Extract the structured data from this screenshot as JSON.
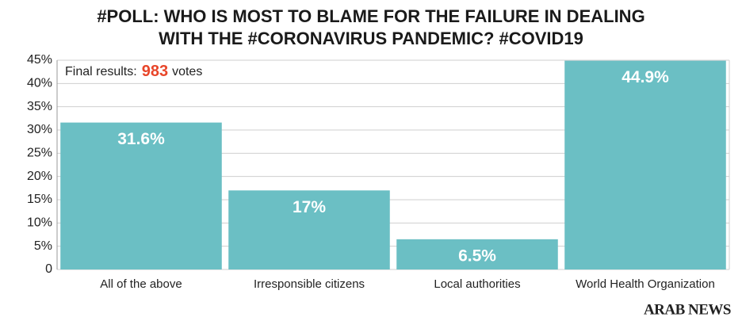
{
  "chart_data": {
    "type": "bar",
    "title": [
      "#POLL: WHO IS MOST TO BLAME FOR THE FAILURE IN DEALING",
      "WITH THE #CORONAVIRUS PANDEMIC? #COVID19"
    ],
    "annotation": {
      "prefix": "Final results:",
      "value": 983,
      "suffix": "votes",
      "value_color": "#e8462a"
    },
    "categories": [
      "All of the above",
      "Irresponsible citizens",
      "Local authorities",
      "World Health Organization"
    ],
    "values": [
      31.6,
      17,
      6.5,
      44.9
    ],
    "value_labels": [
      "31.6%",
      "17%",
      "6.5%",
      "44.9%"
    ],
    "color": "#6bbfc4",
    "ylim": [
      0,
      45
    ],
    "yticks": [
      0,
      {
        "value": 5,
        "label": "5%"
      },
      {
        "value": 10,
        "label": "10%"
      },
      {
        "value": 15,
        "label": "15%"
      },
      {
        "value": 20,
        "label": "20%"
      },
      {
        "value": 25,
        "label": "25%"
      },
      {
        "value": 30,
        "label": "30%"
      },
      {
        "value": 35,
        "label": "35%"
      },
      {
        "value": 40,
        "label": "40%"
      },
      {
        "value": 45,
        "label": "45%"
      }
    ],
    "grid": true,
    "source": "ARAB NEWS"
  }
}
